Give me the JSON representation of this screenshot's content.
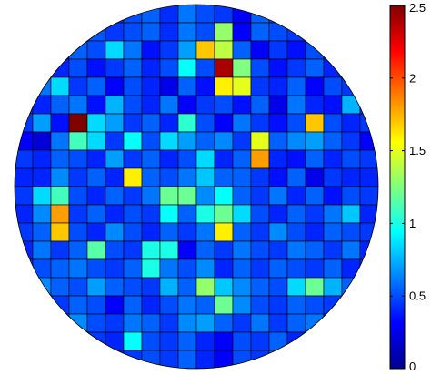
{
  "chart_data": {
    "type": "heatmap",
    "title": "",
    "xlabel": "",
    "ylabel": "",
    "shape": "circular wafer map",
    "grid": true,
    "colormap": "jet",
    "colormap_stops": [
      "#00008f",
      "#0000ff",
      "#00ffff",
      "#ffff00",
      "#ff0000",
      "#800000"
    ],
    "background_color": "#ffffff",
    "cell_edge_color": "#000000",
    "colorbar": {
      "placement": "right",
      "range": [
        0,
        2.5
      ],
      "ticks": [
        {
          "value": 0,
          "label": "0"
        },
        {
          "value": 0.5,
          "label": "0.5"
        },
        {
          "value": 1,
          "label": "1"
        },
        {
          "value": 1.5,
          "label": "1.5"
        },
        {
          "value": 2,
          "label": "2"
        },
        {
          "value": 2.5,
          "label": "2.5"
        }
      ]
    },
    "rows": 20,
    "cols": 20,
    "values": [
      [
        0.45,
        0.5,
        0.55,
        0.48,
        0.52,
        0.45,
        0.5,
        0.55,
        0.42,
        0.6,
        0.5,
        0.45,
        0.3,
        0.55,
        0.5,
        0.45,
        0.5,
        0.55,
        0.5,
        0.45
      ],
      [
        0.45,
        0.5,
        0.55,
        0.48,
        0.52,
        0.45,
        0.5,
        0.55,
        0.42,
        0.6,
        0.5,
        1.3,
        0.3,
        0.55,
        0.5,
        0.45,
        0.5,
        0.55,
        0.5,
        0.45
      ],
      [
        0.3,
        0.25,
        0.3,
        0.55,
        0.5,
        0.85,
        0.6,
        0.35,
        0.45,
        0.7,
        1.7,
        1.4,
        0.55,
        0.3,
        0.45,
        0.35,
        0.5,
        0.4,
        0.45,
        0.4
      ],
      [
        0.45,
        0.55,
        0.4,
        0.5,
        0.35,
        0.45,
        0.55,
        0.4,
        0.5,
        0.95,
        0.5,
        2.4,
        1.25,
        0.5,
        0.35,
        0.45,
        0.55,
        0.4,
        0.5,
        0.45
      ],
      [
        0.4,
        0.6,
        0.85,
        0.45,
        0.55,
        0.3,
        0.5,
        0.4,
        0.25,
        0.55,
        0.35,
        1.6,
        1.5,
        0.45,
        0.4,
        0.55,
        0.3,
        0.5,
        0.45,
        0.4
      ],
      [
        0.45,
        0.4,
        0.55,
        0.6,
        0.35,
        0.75,
        0.5,
        0.4,
        0.6,
        0.3,
        0.45,
        0.5,
        0.35,
        0.55,
        0.25,
        0.6,
        0.4,
        0.35,
        0.75,
        0.45
      ],
      [
        0.45,
        0.7,
        0.35,
        2.5,
        0.85,
        0.7,
        0.45,
        0.55,
        0.4,
        1.05,
        0.5,
        0.3,
        0.6,
        0.45,
        0.35,
        0.5,
        1.7,
        0.5,
        0.4,
        0.45
      ],
      [
        0.3,
        0.2,
        0.6,
        1.1,
        0.85,
        0.45,
        0.95,
        0.5,
        0.85,
        0.7,
        0.55,
        0.65,
        0.45,
        1.5,
        0.55,
        0.65,
        0.7,
        0.55,
        0.45,
        0.3
      ],
      [
        0.45,
        0.4,
        0.55,
        0.5,
        0.4,
        0.7,
        0.45,
        0.55,
        0.4,
        0.5,
        0.85,
        0.4,
        0.55,
        1.8,
        0.4,
        0.35,
        0.55,
        0.4,
        0.5,
        0.45
      ],
      [
        0.4,
        0.4,
        0.65,
        0.45,
        0.55,
        0.4,
        1.6,
        0.55,
        0.5,
        0.6,
        0.8,
        0.55,
        0.55,
        0.45,
        0.35,
        0.55,
        0.25,
        0.45,
        0.4,
        0.4
      ],
      [
        0.45,
        0.85,
        1.1,
        0.5,
        0.4,
        0.55,
        0.45,
        0.6,
        1.2,
        1.2,
        0.65,
        0.95,
        0.55,
        0.45,
        0.6,
        0.4,
        0.55,
        0.35,
        0.5,
        0.45
      ],
      [
        0.4,
        0.65,
        1.8,
        0.45,
        0.55,
        0.4,
        0.5,
        0.45,
        0.95,
        0.55,
        1.0,
        1.2,
        0.85,
        0.5,
        0.4,
        0.55,
        0.45,
        0.6,
        0.8,
        0.4
      ],
      [
        0.45,
        0.55,
        1.7,
        0.5,
        0.4,
        0.65,
        0.5,
        0.4,
        0.55,
        0.45,
        0.6,
        1.6,
        0.55,
        0.45,
        0.65,
        0.5,
        0.4,
        0.55,
        0.5,
        0.45
      ],
      [
        0.4,
        0.6,
        0.45,
        0.55,
        1.15,
        0.5,
        0.45,
        1.0,
        1.0,
        0.3,
        0.55,
        0.45,
        0.6,
        0.5,
        0.45,
        0.6,
        0.55,
        0.45,
        0.6,
        0.4
      ],
      [
        0.45,
        0.5,
        0.55,
        0.6,
        0.5,
        0.45,
        0.55,
        1.0,
        0.6,
        0.5,
        0.65,
        0.4,
        0.55,
        0.45,
        0.55,
        0.5,
        0.45,
        0.55,
        0.4,
        0.45
      ],
      [
        0.4,
        0.65,
        0.55,
        0.5,
        0.7,
        0.55,
        0.5,
        0.45,
        0.75,
        0.55,
        1.3,
        0.8,
        0.65,
        0.55,
        0.5,
        0.85,
        1.2,
        0.75,
        0.55,
        0.4
      ],
      [
        0.45,
        0.5,
        0.45,
        0.55,
        0.5,
        0.3,
        0.55,
        0.4,
        0.5,
        0.6,
        0.55,
        1.2,
        0.65,
        0.5,
        0.45,
        0.55,
        0.5,
        0.45,
        0.55,
        0.45
      ],
      [
        0.4,
        0.45,
        0.55,
        0.65,
        0.5,
        0.45,
        0.6,
        0.55,
        0.45,
        0.65,
        0.7,
        0.55,
        0.45,
        0.6,
        0.45,
        0.55,
        0.6,
        0.5,
        0.45,
        0.4
      ],
      [
        0.4,
        0.45,
        0.35,
        0.5,
        0.45,
        0.4,
        0.95,
        0.5,
        0.45,
        0.55,
        0.4,
        0.3,
        0.5,
        0.45,
        0.55,
        0.4,
        0.45,
        0.5,
        0.4,
        0.4
      ],
      [
        0.4,
        0.45,
        0.35,
        0.5,
        0.45,
        0.4,
        0.45,
        0.5,
        0.45,
        0.55,
        0.4,
        0.3,
        0.5,
        0.45,
        0.55,
        0.4,
        0.45,
        0.5,
        0.4,
        0.4
      ]
    ]
  }
}
